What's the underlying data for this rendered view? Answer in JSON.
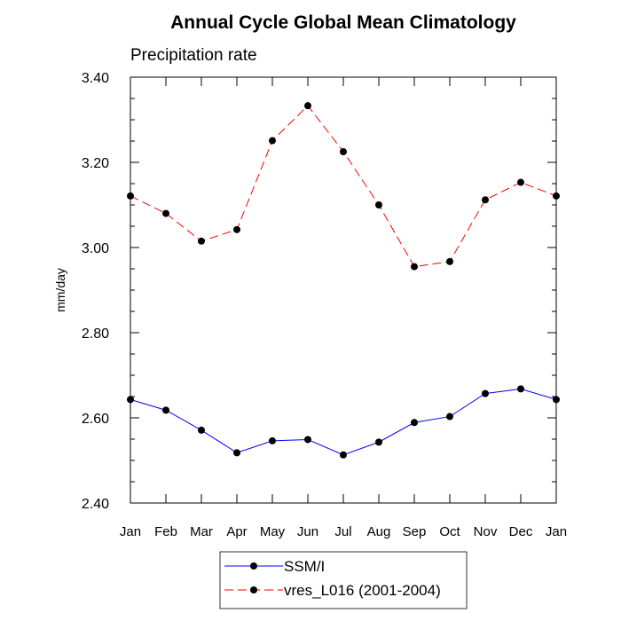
{
  "chart_data": {
    "type": "line",
    "title": "Annual Cycle Global Mean Climatology",
    "subtitle": "Precipitation rate",
    "xlabel": "",
    "ylabel": "mm/day",
    "categories": [
      "Jan",
      "Feb",
      "Mar",
      "Apr",
      "May",
      "Jun",
      "Jul",
      "Aug",
      "Sep",
      "Oct",
      "Nov",
      "Dec",
      "Jan"
    ],
    "ylim": [
      2.4,
      3.4
    ],
    "yticks": [
      "2.40",
      "2.60",
      "2.80",
      "3.00",
      "3.20",
      "3.40"
    ],
    "grid": false,
    "legend_position": "bottom-center",
    "series": [
      {
        "name": "SSM/I",
        "color": "#0000ff",
        "dash": "solid",
        "values": [
          2.643,
          2.618,
          2.571,
          2.518,
          2.546,
          2.549,
          2.513,
          2.543,
          2.589,
          2.603,
          2.657,
          2.668,
          2.643
        ]
      },
      {
        "name": "vres_L016 (2001-2004)",
        "color": "#ff0000",
        "dash": "dashed",
        "values": [
          3.121,
          3.08,
          3.015,
          3.042,
          3.251,
          3.333,
          3.225,
          3.1,
          2.955,
          2.967,
          3.112,
          3.153,
          3.121
        ]
      }
    ]
  }
}
